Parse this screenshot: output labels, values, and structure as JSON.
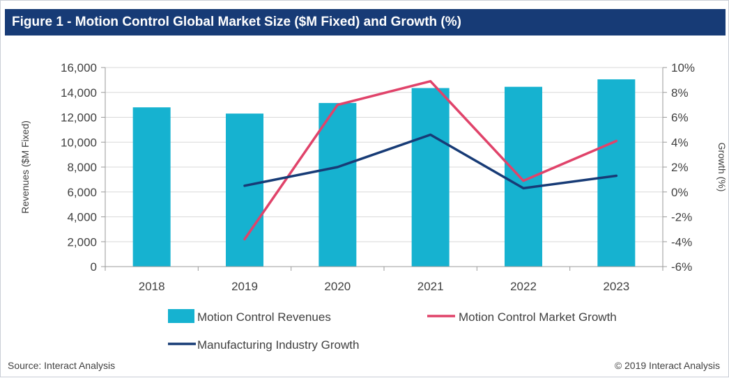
{
  "header": {
    "title": "Figure 1 - Motion Control Global Market Size ($M Fixed) and Growth (%)"
  },
  "footer": {
    "source": "Source: Interact Analysis",
    "copyright": "© 2019 Interact Analysis"
  },
  "colors": {
    "title_bg": "#173b76",
    "bar": "#16b2d0",
    "market_growth": "#e0436a",
    "industry_growth": "#173b76",
    "grid": "#d9d9d9"
  },
  "chart_data": {
    "type": "bar",
    "title": "Figure 1 - Motion Control Global Market Size ($M Fixed) and Growth (%)",
    "categories": [
      "2018",
      "2019",
      "2020",
      "2021",
      "2022",
      "2023"
    ],
    "ylabel": "Revenues ($M Fixed)",
    "y2label": "Growth (%)",
    "ylim": [
      0,
      16000
    ],
    "y2lim": [
      -6,
      10
    ],
    "yticks": [
      "0",
      "2,000",
      "4,000",
      "6,000",
      "8,000",
      "10,000",
      "12,000",
      "14,000",
      "16,000"
    ],
    "y2ticks": [
      "-6%",
      "-4%",
      "-2%",
      "0%",
      "2%",
      "4%",
      "6%",
      "8%",
      "10%"
    ],
    "grid": true,
    "legend_position": "bottom",
    "series": [
      {
        "name": "Motion Control Revenues",
        "kind": "bar",
        "axis": "left",
        "values": [
          12800,
          12300,
          13150,
          14350,
          14450,
          15050
        ]
      },
      {
        "name": "Motion Control Market Growth",
        "kind": "line",
        "axis": "right",
        "values": [
          null,
          -3.8,
          7.0,
          8.9,
          0.9,
          4.1
        ]
      },
      {
        "name": "Manufacturing Industry Growth",
        "kind": "line",
        "axis": "right",
        "values": [
          null,
          0.5,
          2.0,
          4.6,
          0.3,
          1.3
        ]
      }
    ]
  }
}
